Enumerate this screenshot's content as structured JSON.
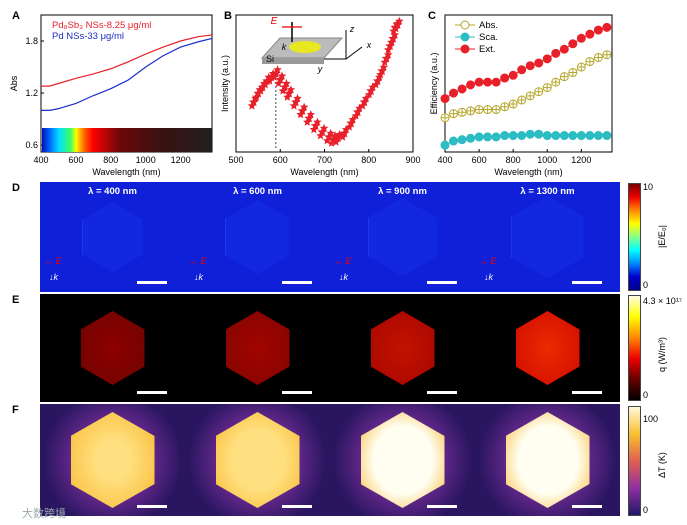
{
  "panels": {
    "A": "A",
    "B": "B",
    "C": "C",
    "D": "D",
    "E": "E",
    "F": "F"
  },
  "chart_data": [
    {
      "type": "line",
      "panel": "A",
      "xlabel": "Wavelength (nm)",
      "ylabel": "Abs",
      "xlim": [
        400,
        1380
      ],
      "ylim": [
        0.52,
        2.1
      ],
      "xticks": [
        400,
        600,
        800,
        1000,
        1200
      ],
      "yticks": [
        0.6,
        1.2,
        1.8
      ],
      "series": [
        {
          "name": "Pd₈Sb₃ NSs-8.25 μg/ml",
          "color": "#e8202a",
          "x": [
            400,
            450,
            500,
            600,
            700,
            800,
            900,
            1000,
            1100,
            1200,
            1300,
            1380
          ],
          "y": [
            1.28,
            1.28,
            1.31,
            1.37,
            1.42,
            1.48,
            1.56,
            1.65,
            1.73,
            1.8,
            1.85,
            1.87
          ]
        },
        {
          "name": "Pd NSs-33 μg/ml",
          "color": "#1c2dc8",
          "x": [
            400,
            450,
            500,
            600,
            700,
            800,
            900,
            1000,
            1100,
            1200,
            1300,
            1380
          ],
          "y": [
            1.0,
            1.0,
            1.02,
            1.08,
            1.17,
            1.25,
            1.35,
            1.5,
            1.63,
            1.73,
            1.79,
            1.83
          ]
        }
      ],
      "legend": "top-left"
    },
    {
      "type": "scatter",
      "panel": "B",
      "xlabel": "Wavelength (nm)",
      "ylabel": "Intensity (a.u.)",
      "xlim": [
        500,
        900
      ],
      "ylim": [
        -0.05,
        1.05
      ],
      "xticks": [
        500,
        600,
        700,
        800,
        900
      ],
      "peak_marker": 590,
      "color": "#e8202a",
      "x": [
        540,
        550,
        560,
        570,
        580,
        590,
        600,
        610,
        620,
        635,
        650,
        665,
        680,
        695,
        710,
        720,
        730,
        745,
        760,
        775,
        790,
        805,
        820,
        830,
        840,
        848,
        855,
        860,
        865
      ],
      "y": [
        0.35,
        0.42,
        0.47,
        0.52,
        0.55,
        0.58,
        0.53,
        0.47,
        0.42,
        0.35,
        0.28,
        0.22,
        0.16,
        0.11,
        0.07,
        0.05,
        0.06,
        0.1,
        0.18,
        0.27,
        0.35,
        0.44,
        0.52,
        0.6,
        0.7,
        0.8,
        0.86,
        0.95,
        0.97
      ],
      "inset": {
        "E": "E",
        "k": "k",
        "z": "z",
        "x": "x",
        "y": "y",
        "substrate": "Si"
      }
    },
    {
      "type": "line",
      "panel": "C",
      "xlabel": "Wavelength (nm)",
      "ylabel": "Efficiency (a.u.)",
      "xlim": [
        400,
        1380
      ],
      "ylim": [
        0,
        1
      ],
      "xticks": [
        400,
        600,
        800,
        1000,
        1200
      ],
      "legend": "top-left",
      "x": [
        400,
        450,
        500,
        550,
        600,
        650,
        700,
        750,
        800,
        850,
        900,
        950,
        1000,
        1050,
        1100,
        1150,
        1200,
        1250,
        1300,
        1350
      ],
      "series": [
        {
          "name": "Abs.",
          "color": "#b5a72c",
          "y": [
            0.25,
            0.28,
            0.29,
            0.3,
            0.31,
            0.31,
            0.31,
            0.33,
            0.35,
            0.38,
            0.41,
            0.44,
            0.47,
            0.51,
            0.55,
            0.58,
            0.62,
            0.66,
            0.69,
            0.71
          ]
        },
        {
          "name": "Sca.",
          "color": "#2bbcc4",
          "y": [
            0.05,
            0.08,
            0.09,
            0.1,
            0.11,
            0.11,
            0.11,
            0.12,
            0.12,
            0.12,
            0.13,
            0.13,
            0.12,
            0.12,
            0.12,
            0.12,
            0.12,
            0.12,
            0.12,
            0.12
          ]
        },
        {
          "name": "Ext.",
          "color": "#e8202a",
          "y": [
            0.39,
            0.43,
            0.46,
            0.49,
            0.51,
            0.51,
            0.51,
            0.54,
            0.56,
            0.6,
            0.63,
            0.65,
            0.68,
            0.72,
            0.75,
            0.79,
            0.83,
            0.86,
            0.89,
            0.91
          ]
        }
      ]
    }
  ],
  "row_d": {
    "titles": [
      "λ = 400 nm",
      "λ = 600 nm",
      "λ = 900 nm",
      "λ = 1300 nm"
    ],
    "E": "E",
    "k": "k",
    "cbar_max": "10",
    "cbar_min": "0",
    "cbar_label": "|E/E₀|"
  },
  "row_e": {
    "intensity": [
      0.15,
      0.3,
      0.55,
      0.85
    ],
    "cbar_max": "4.3 × 10¹⁷",
    "cbar_min": "0",
    "cbar_label": "q (W/m³)"
  },
  "row_f": {
    "intensity": [
      0.55,
      0.85,
      1.0,
      1.0
    ],
    "cbar_max": "100",
    "cbar_min": "0",
    "cbar_label": "ΔT (K)"
  },
  "watermark": "大数跨境"
}
